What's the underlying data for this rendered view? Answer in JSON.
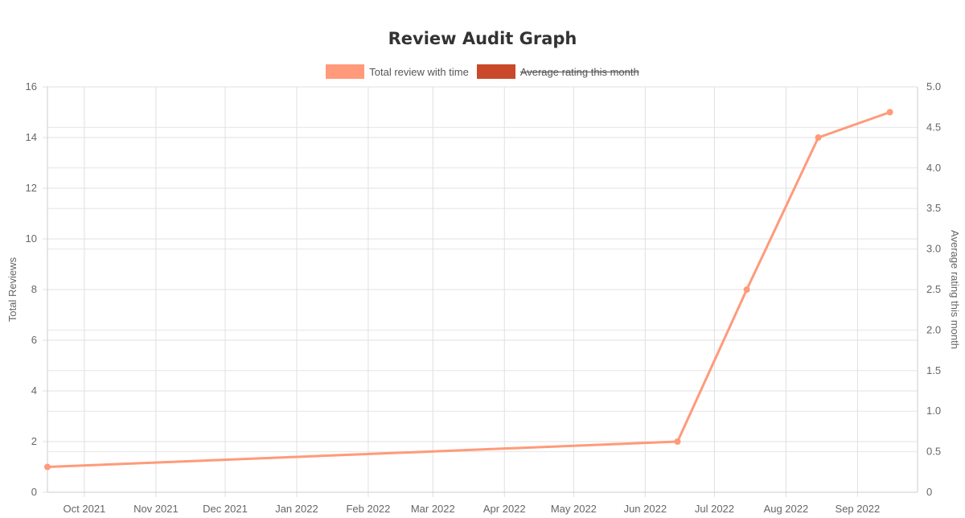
{
  "chart_data": {
    "type": "line",
    "title": "Review Audit Graph",
    "legend": {
      "placement": "top-center",
      "entries": [
        {
          "label": "Total review with time",
          "color": "#ff9a7a",
          "hidden": false
        },
        {
          "label": "Average rating this month",
          "color": "#c9492a",
          "hidden": true
        }
      ]
    },
    "x_axis": {
      "type": "time",
      "tick_labels": [
        "Oct 2021",
        "Nov 2021",
        "Dec 2021",
        "Jan 2022",
        "Feb 2022",
        "Mar 2022",
        "Apr 2022",
        "May 2022",
        "Jun 2022",
        "Jul 2022",
        "Aug 2022",
        "Sep 2022"
      ],
      "range": [
        "2021-09-15",
        "2022-09-27"
      ],
      "grid": true
    },
    "y_axis_left": {
      "label": "Total Reviews",
      "range": [
        0,
        16
      ],
      "ticks": [
        0,
        2,
        4,
        6,
        8,
        10,
        12,
        14,
        16
      ],
      "grid": true
    },
    "y_axis_right": {
      "label": "Average rating this month",
      "range": [
        0,
        5
      ],
      "ticks": [
        "0",
        "0.5",
        "1.0",
        "1.5",
        "2.0",
        "2.5",
        "3.0",
        "3.5",
        "4.0",
        "4.5",
        "5.0"
      ]
    },
    "series": [
      {
        "name": "Total review with time",
        "color": "#ff9a7a",
        "axis": "left",
        "points": [
          {
            "x": "2021-09-15",
            "y": 1
          },
          {
            "x": "2022-06-15",
            "y": 2
          },
          {
            "x": "2022-07-15",
            "y": 8
          },
          {
            "x": "2022-08-15",
            "y": 14
          },
          {
            "x": "2022-09-15",
            "y": 15
          }
        ]
      }
    ]
  }
}
